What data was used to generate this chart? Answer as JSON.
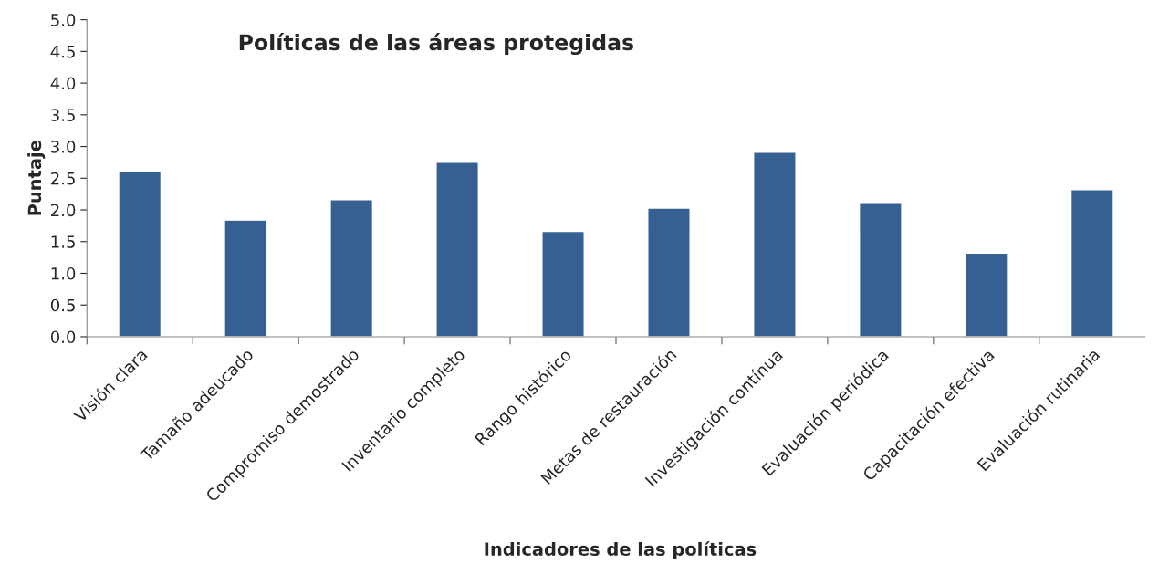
{
  "chart_data": {
    "type": "bar",
    "title": "Políticas de las áreas protegidas",
    "xlabel": "Indicadores de las políticas",
    "ylabel": "Puntaje",
    "categories": [
      "Visión clara",
      "Tamaño adeucado",
      "Compromiso demostrado",
      "Inventario completo",
      "Rango histórico",
      "Metas de restauración",
      "Investigación contínua",
      "Evaluación periódica",
      "Capacitación efectiva",
      "Evaluación rutinaria"
    ],
    "values": [
      2.6,
      1.84,
      2.16,
      2.75,
      1.66,
      2.03,
      2.91,
      2.12,
      1.32,
      2.32
    ],
    "color": "#376092",
    "ylim": [
      0,
      5
    ],
    "yticks": [
      {
        "value": 0,
        "label": "0.0"
      },
      {
        "value": 0.5,
        "label": "0.5"
      },
      {
        "value": 1,
        "label": "1.0"
      },
      {
        "value": 1.5,
        "label": "1.5"
      },
      {
        "value": 2,
        "label": "2.0"
      },
      {
        "value": 2.5,
        "label": "2.5"
      },
      {
        "value": 3,
        "label": "3.0"
      },
      {
        "value": 3.5,
        "label": "3.5"
      },
      {
        "value": 4,
        "label": "4.0"
      },
      {
        "value": 4.5,
        "label": "4.5"
      },
      {
        "value": 5,
        "label": "5.0"
      }
    ],
    "grid": false,
    "legend": false
  }
}
